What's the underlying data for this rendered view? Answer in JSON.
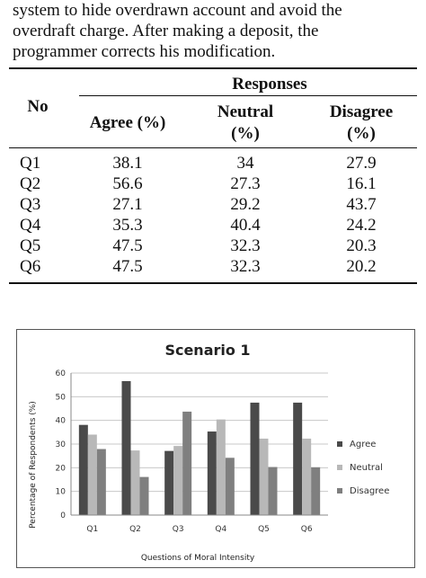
{
  "paragraph_lines": [
    "system to hide overdrawn account and avoid the",
    "overdraft charge. After making a deposit, the",
    "programmer corrects his modification."
  ],
  "table": {
    "col_no": "No",
    "group_header": "Responses",
    "headers": [
      {
        "line1": "Agree (%)",
        "line2": ""
      },
      {
        "line1": "Neutral",
        "line2": "(%)"
      },
      {
        "line1": "Disagree",
        "line2": "(%)"
      }
    ],
    "rows": [
      {
        "q": "Q1",
        "agree": "38.1",
        "neutral": "34",
        "disagree": "27.9"
      },
      {
        "q": "Q2",
        "agree": "56.6",
        "neutral": "27.3",
        "disagree": "16.1"
      },
      {
        "q": "Q3",
        "agree": "27.1",
        "neutral": "29.2",
        "disagree": "43.7"
      },
      {
        "q": "Q4",
        "agree": "35.3",
        "neutral": "40.4",
        "disagree": "24.2"
      },
      {
        "q": "Q5",
        "agree": "47.5",
        "neutral": "32.3",
        "disagree": "20.3"
      },
      {
        "q": "Q6",
        "agree": "47.5",
        "neutral": "32.3",
        "disagree": "20.2"
      }
    ]
  },
  "chart_data": {
    "type": "bar",
    "title": "Scenario 1",
    "xlabel": "Questions of Moral Intensity",
    "ylabel": "Percentage of Respondents (%)",
    "categories": [
      "Q1",
      "Q2",
      "Q3",
      "Q4",
      "Q5",
      "Q6"
    ],
    "ylim": [
      0,
      60
    ],
    "yticks": [
      0,
      10,
      20,
      30,
      40,
      50,
      60
    ],
    "grid": true,
    "legend_position": "right",
    "series": [
      {
        "name": "Agree",
        "color": "#4a4a4a",
        "values": [
          38.1,
          56.6,
          27.1,
          35.3,
          47.5,
          47.5
        ]
      },
      {
        "name": "Neutral",
        "color": "#b8b8b8",
        "values": [
          34,
          27.3,
          29.2,
          40.4,
          32.3,
          32.3
        ]
      },
      {
        "name": "Disagree",
        "color": "#7f7f7f",
        "values": [
          27.9,
          16.1,
          43.7,
          24.2,
          20.3,
          20.2
        ]
      }
    ]
  }
}
